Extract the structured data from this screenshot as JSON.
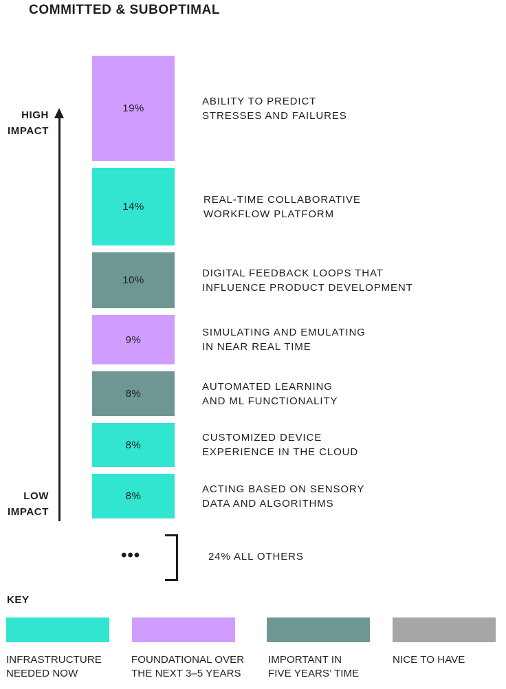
{
  "title": "COMMITTED & SUBOPTIMAL",
  "axis": {
    "high": "HIGH\nIMPACT",
    "low": "LOW\nIMPACT"
  },
  "colors": {
    "infrastructure": "#31e5d1",
    "foundational": "#d09cfd",
    "important": "#6e9794",
    "nice": "#a6a6a6"
  },
  "chart_data": {
    "type": "bar",
    "orientation": "vertical-stack",
    "title": "COMMITTED & SUBOPTIMAL",
    "categories": [
      "ABILITY TO PREDICT\nSTRESSES AND FAILURES",
      "REAL-TIME COLLABORATIVE\nWORKFLOW PLATFORM",
      "DIGITAL FEEDBACK LOOPS THAT\nINFLUENCE PRODUCT DEVELOPMENT",
      "SIMULATING AND EMULATING\nIN NEAR REAL TIME",
      "AUTOMATED LEARNING\nAND ML FUNCTIONALITY",
      "CUSTOMIZED DEVICE\nEXPERIENCE IN THE CLOUD",
      "ACTING BASED ON SENSORY\nDATA AND ALGORITHMS"
    ],
    "values": [
      19,
      14,
      10,
      9,
      8,
      8,
      8
    ],
    "value_labels": [
      "19%",
      "14%",
      "10%",
      "9%",
      "8%",
      "8%",
      "8%"
    ],
    "key": [
      "foundational",
      "infrastructure",
      "important",
      "foundational",
      "important",
      "infrastructure",
      "infrastructure"
    ],
    "others_label": "24% ALL OTHERS",
    "others_marker": "•••",
    "legend": [
      {
        "key": "infrastructure",
        "label": "INFRASTRUCTURE\nNEEDED NOW"
      },
      {
        "key": "foundational",
        "label": "FOUNDATIONAL OVER\nTHE NEXT 3–5 YEARS"
      },
      {
        "key": "important",
        "label": "IMPORTANT IN\nFIVE YEARS’ TIME"
      },
      {
        "key": "nice",
        "label": "NICE TO HAVE"
      }
    ],
    "legend_title": "KEY"
  }
}
